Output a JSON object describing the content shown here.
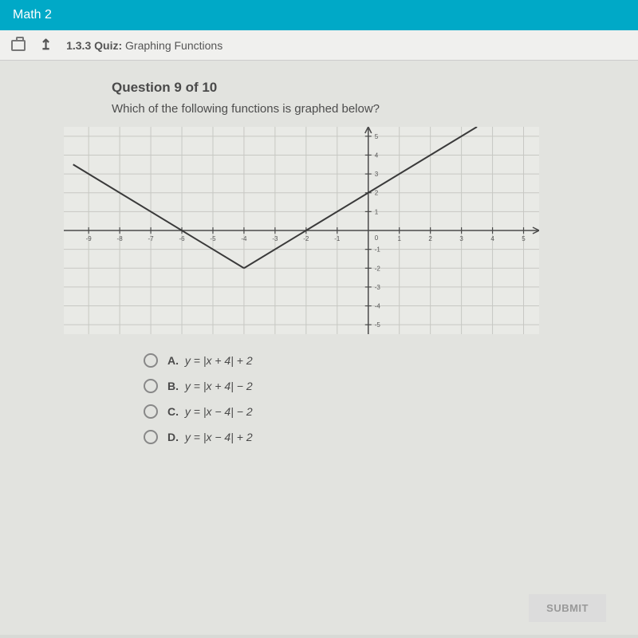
{
  "topbar": {
    "title": "Math 2"
  },
  "subbar": {
    "section": "1.3.3",
    "quiz_word": "Quiz:",
    "quiz_title": "Graphing Functions"
  },
  "question": {
    "heading": "Question 9 of 10",
    "prompt": "Which of the following functions is graphed below?"
  },
  "graph": {
    "type": "line",
    "x_range": [
      -9.8,
      5.5
    ],
    "y_range": [
      -5.5,
      5.5
    ],
    "x_ticks": [
      -9,
      -8,
      -7,
      -6,
      -5,
      -4,
      -3,
      -2,
      -1,
      0,
      1,
      2,
      3,
      4,
      5
    ],
    "y_ticks": [
      -5,
      -4,
      -3,
      -2,
      -1,
      0,
      1,
      2,
      3,
      4,
      5
    ],
    "grid_color": "#c7c8c3",
    "axis_color": "#4a4a4a",
    "background": "#e9eae6",
    "line_color": "#3a3a3a",
    "line_width": 2,
    "label_fontsize": 8,
    "label_color": "#555",
    "series": [
      {
        "points": [
          [
            -9.5,
            3.5
          ],
          [
            -4,
            -2
          ]
        ]
      },
      {
        "points": [
          [
            -4,
            -2
          ],
          [
            5,
            7
          ]
        ]
      }
    ]
  },
  "options": [
    {
      "key": "A",
      "text": "y = |x + 4| + 2"
    },
    {
      "key": "B",
      "text": "y = |x + 4| − 2"
    },
    {
      "key": "C",
      "text": "y = |x − 4| − 2"
    },
    {
      "key": "D",
      "text": "y = |x − 4| + 2"
    }
  ],
  "submit": {
    "label": "SUBMIT"
  }
}
